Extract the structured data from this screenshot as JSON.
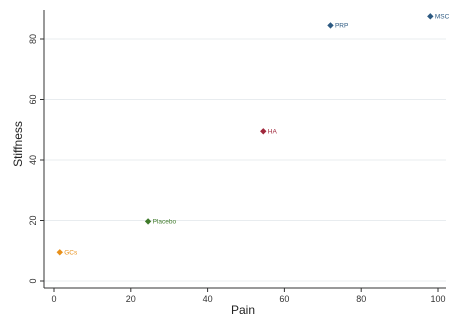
{
  "chart_data": {
    "type": "scatter",
    "title": "",
    "xlabel": "Pain",
    "ylabel": "Stiffness",
    "xlim": [
      0,
      100
    ],
    "ylim": [
      0,
      90
    ],
    "xticks": [
      0,
      20,
      40,
      60,
      80,
      100
    ],
    "yticks": [
      0,
      20,
      40,
      60,
      80
    ],
    "grid": true,
    "points": [
      {
        "label": "GCs",
        "x": 1.5,
        "y": 9.5,
        "color": "#e8901a"
      },
      {
        "label": "Placebo",
        "x": 24.5,
        "y": 19.7,
        "color": "#3f7a2a"
      },
      {
        "label": "HA",
        "x": 54.5,
        "y": 49.5,
        "color": "#a0283c"
      },
      {
        "label": "PRP",
        "x": 72,
        "y": 84.5,
        "color": "#2d5a82"
      },
      {
        "label": "MSC",
        "x": 98,
        "y": 87.5,
        "color": "#2d5a82"
      }
    ]
  }
}
